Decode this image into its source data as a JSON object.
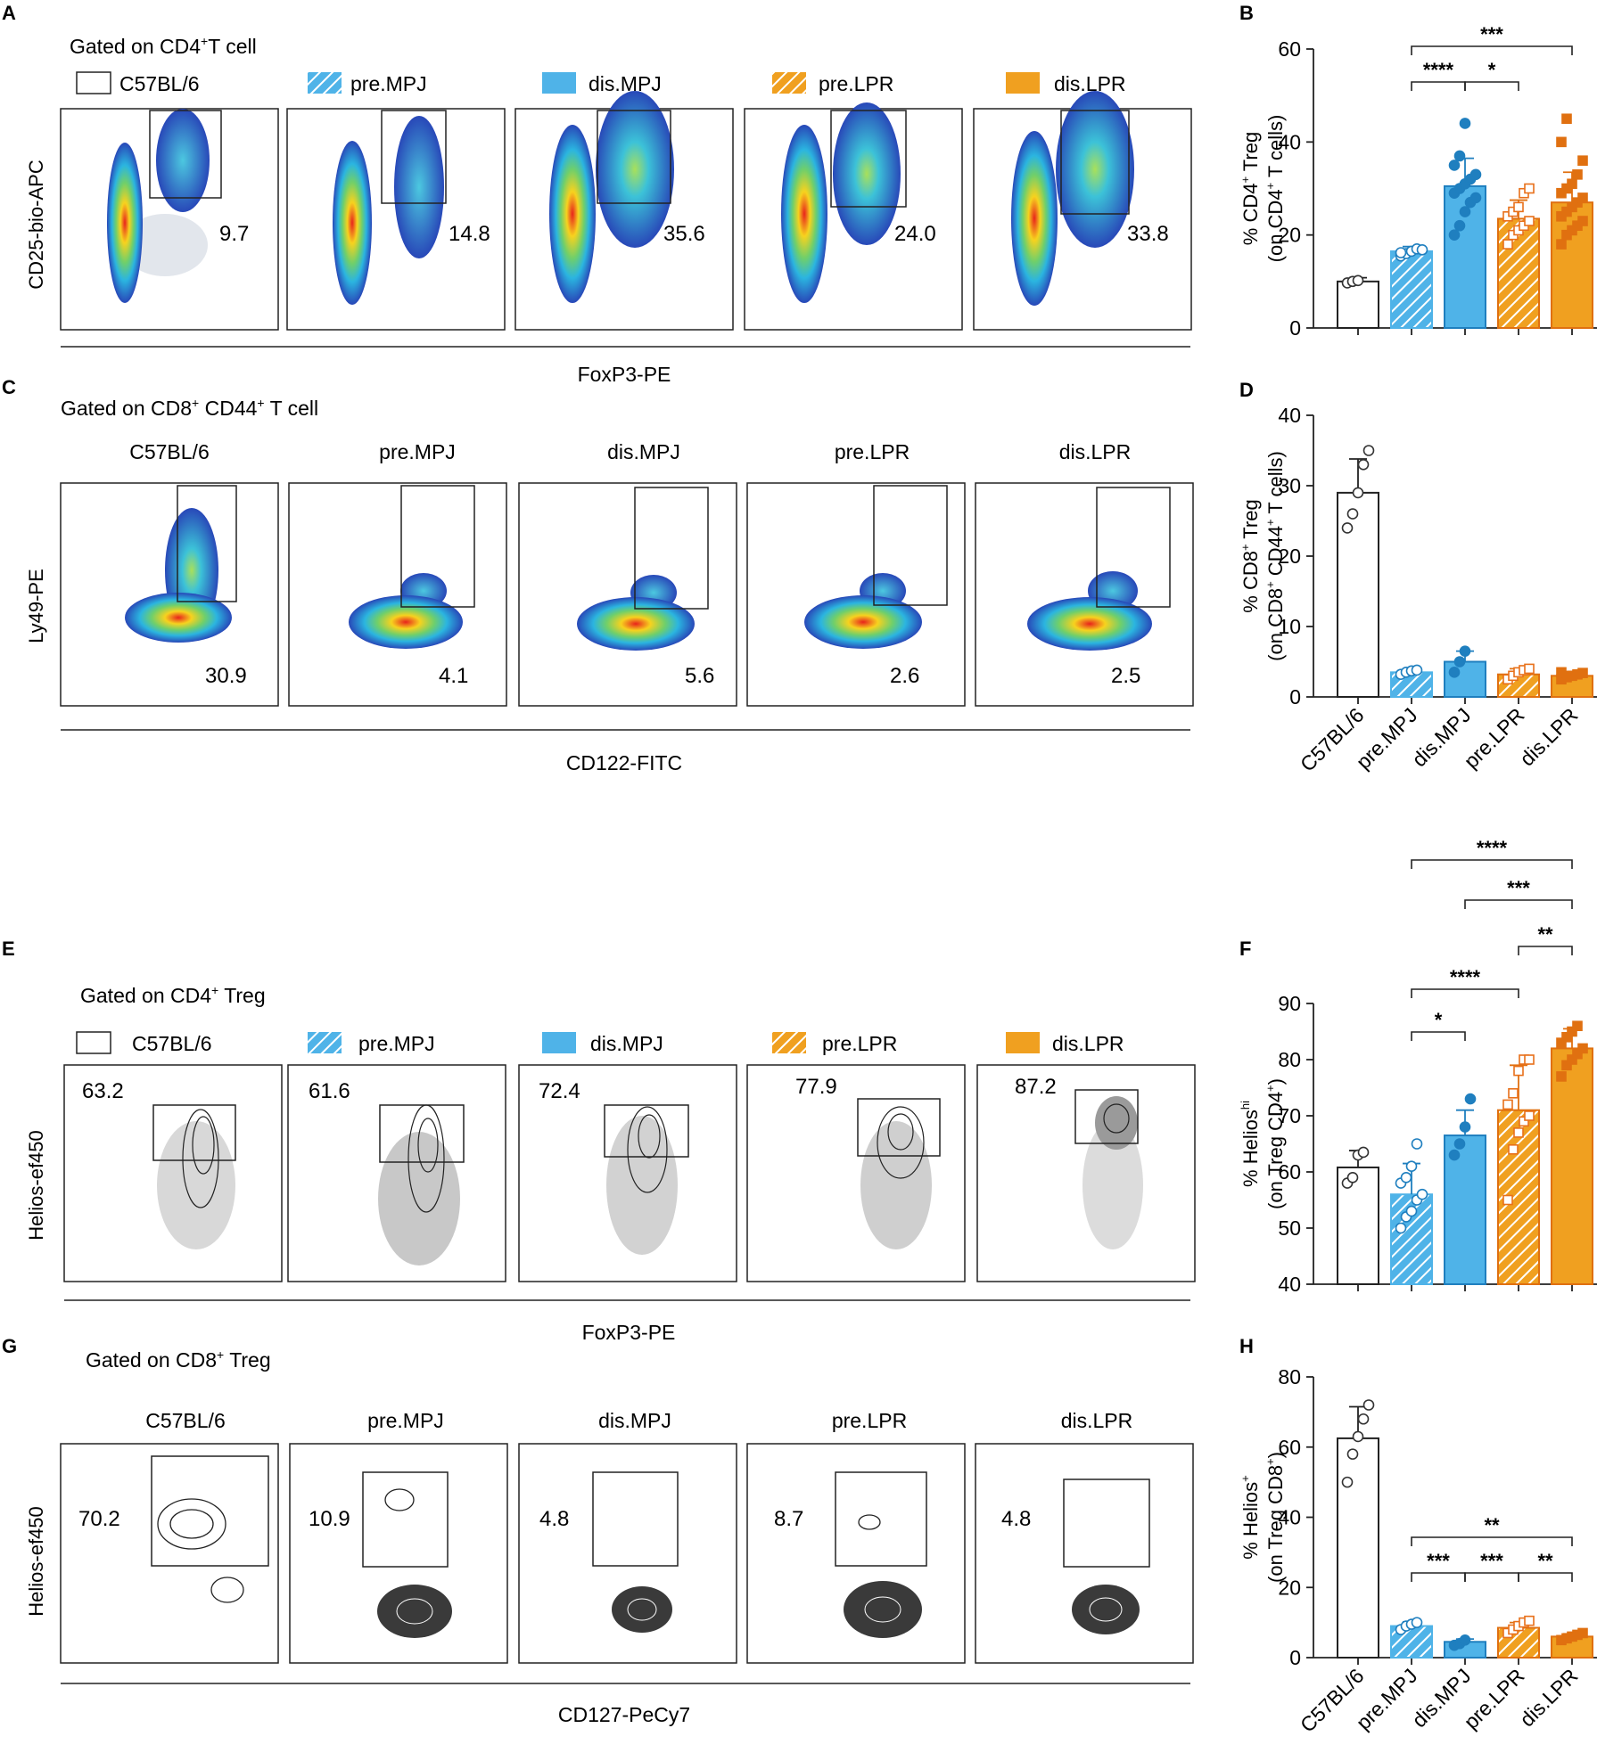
{
  "colors": {
    "c57": "#ffffff",
    "mpj": "#4fb3e8",
    "mpj_dark": "#1f7fbf",
    "lpr": "#f0a020",
    "lpr_dark": "#e07010",
    "point_lpr_open": "#e8701a"
  },
  "groups": [
    "C57BL/6",
    "pre.MPJ",
    "dis.MPJ",
    "pre.LPR",
    "dis.LPR"
  ],
  "panels": {
    "A": {
      "letter": "A",
      "title_prefix": "Gated on CD4",
      "title_sup": "+",
      "title_suffix": "T cell",
      "legend": [
        "C57BL/6",
        "pre.MPJ",
        "dis.MPJ",
        "pre.LPR",
        "dis.LPR"
      ],
      "ylabel": "CD25-bio-APC",
      "xlabel": "FoxP3-PE",
      "gate_values": [
        "9.7",
        "14.8",
        "35.6",
        "24.0",
        "33.8"
      ]
    },
    "C": {
      "letter": "C",
      "title_prefix": "Gated on CD8",
      "title_sup": "+",
      "title_mid": " CD44",
      "title_sup2": "+",
      "title_suffix": " T cell",
      "col_titles": [
        "C57BL/6",
        "pre.MPJ",
        "dis.MPJ",
        "pre.LPR",
        "dis.LPR"
      ],
      "ylabel": "Ly49-PE",
      "xlabel": "CD122-FITC",
      "gate_values": [
        "30.9",
        "4.1",
        "5.6",
        "2.6",
        "2.5"
      ]
    },
    "E": {
      "letter": "E",
      "title_prefix": "Gated on CD4",
      "title_sup": "+",
      "title_suffix": " Treg",
      "legend": [
        "C57BL/6",
        "pre.MPJ",
        "dis.MPJ",
        "pre.LPR",
        "dis.LPR"
      ],
      "ylabel": "Helios-ef450",
      "xlabel": "FoxP3-PE",
      "gate_values": [
        "63.2",
        "61.6",
        "72.4",
        "77.9",
        "87.2"
      ]
    },
    "G": {
      "letter": "G",
      "title_prefix": "Gated on CD8",
      "title_sup": "+",
      "title_suffix": " Treg",
      "col_titles": [
        "C57BL/6",
        "pre.MPJ",
        "dis.MPJ",
        "pre.LPR",
        "dis.LPR"
      ],
      "ylabel": "Helios-ef450",
      "xlabel": "CD127-PeCy7",
      "gate_values": [
        "70.2",
        "10.9",
        "4.8",
        "8.7",
        "4.8"
      ]
    }
  },
  "chart_data": [
    {
      "panel": "B",
      "type": "bar",
      "ylabel_line1": "% CD4",
      "ylabel_line1_sup": "+",
      "ylabel_line1_end": " Treg",
      "ylabel_line2": "(on CD4",
      "ylabel_line2_sup": "+",
      "ylabel_line2_end": " T cells)",
      "ylim": [
        0,
        60
      ],
      "yticks": [
        "0",
        "20",
        "40",
        "60"
      ],
      "ytick_values": [
        0,
        20,
        40,
        60
      ],
      "categories": [
        "C57BL/6",
        "pre.MPJ",
        "dis.MPJ",
        "pre.LPR",
        "dis.LPR"
      ],
      "values": [
        10,
        16.5,
        30.5,
        23.5,
        27
      ],
      "errors": [
        0.8,
        1.0,
        6.0,
        4.0,
        6.5
      ],
      "points": [
        [
          9.7,
          10,
          10.2
        ],
        [
          15.5,
          16,
          16.5,
          17,
          16.8,
          16.2
        ],
        [
          20,
          22,
          25,
          27,
          28,
          29,
          30,
          31,
          32,
          33,
          35,
          37,
          44
        ],
        [
          18,
          20,
          21,
          22,
          23,
          24,
          25,
          26,
          29,
          30
        ],
        [
          18,
          20,
          21,
          22,
          23,
          24,
          25,
          26,
          27,
          28,
          29,
          30,
          31,
          33,
          36,
          40,
          45
        ]
      ],
      "significance": [
        {
          "from": 1,
          "to": 4,
          "label": "***"
        },
        {
          "from": 1,
          "to": 2,
          "label": "****"
        },
        {
          "from": 2,
          "to": 3,
          "label": "*"
        }
      ],
      "show_xlabels": false
    },
    {
      "panel": "D",
      "type": "bar",
      "ylabel_line1": "% CD8",
      "ylabel_line1_sup": "+",
      "ylabel_line1_end": " Treg",
      "ylabel_line2": "(on CD8",
      "ylabel_line2_sup": "+",
      "ylabel_line2_mid": " CD44",
      "ylabel_line2_sup2": "+",
      "ylabel_line2_end": " T cells)",
      "ylim": [
        0,
        40
      ],
      "yticks": [
        "0",
        "10",
        "20",
        "30",
        "40"
      ],
      "ytick_values": [
        0,
        10,
        20,
        30,
        40
      ],
      "categories": [
        "C57BL/6",
        "pre.MPJ",
        "dis.MPJ",
        "pre.LPR",
        "dis.LPR"
      ],
      "values": [
        29,
        3.5,
        5,
        3.2,
        3.0
      ],
      "errors": [
        4.8,
        0.5,
        1.5,
        0.8,
        0.6
      ],
      "points": [
        [
          24,
          26,
          29,
          33,
          35
        ],
        [
          3.2,
          3.5,
          3.7,
          3.8
        ],
        [
          3.5,
          5,
          6.5
        ],
        [
          2.5,
          3,
          3.5,
          3.8,
          4
        ],
        [
          2.5,
          2.8,
          3,
          3.2,
          3.4,
          3.5
        ]
      ],
      "significance": [],
      "show_xlabels": true
    },
    {
      "panel": "F",
      "type": "bar",
      "ylabel_line1": "% Helios",
      "ylabel_line1_sup": "hi",
      "ylabel_line1_end": "",
      "ylabel_line2": "(on Treg CD4",
      "ylabel_line2_sup": "+",
      "ylabel_line2_end": ")",
      "ylim": [
        40,
        90
      ],
      "yticks": [
        "40",
        "50",
        "60",
        "70",
        "80",
        "90"
      ],
      "ytick_values": [
        40,
        50,
        60,
        70,
        80,
        90
      ],
      "categories": [
        "C57BL/6",
        "pre.MPJ",
        "dis.MPJ",
        "pre.LPR",
        "dis.LPR"
      ],
      "values": [
        60.8,
        56,
        66.5,
        71,
        82
      ],
      "errors": [
        3,
        5.5,
        4.5,
        8,
        3.5
      ],
      "points": [
        [
          58,
          59,
          63,
          63.5
        ],
        [
          50,
          52,
          53,
          55,
          56,
          58,
          59,
          61,
          65
        ],
        [
          63,
          65,
          68,
          73
        ],
        [
          55,
          64,
          67,
          69,
          70,
          72,
          74,
          78,
          80,
          80
        ],
        [
          77,
          79,
          80,
          81,
          82,
          83,
          84,
          85,
          86
        ]
      ],
      "significance": [
        {
          "from": 1,
          "to": 4,
          "label": "****"
        },
        {
          "from": 2,
          "to": 4,
          "label": "***"
        },
        {
          "from": 3,
          "to": 4,
          "label": "**"
        },
        {
          "from": 1,
          "to": 3,
          "label": "****"
        },
        {
          "from": 1,
          "to": 2,
          "label": "*"
        }
      ],
      "show_xlabels": false
    },
    {
      "panel": "H",
      "type": "bar",
      "ylabel_line1": "% Helios",
      "ylabel_line1_sup": "+",
      "ylabel_line1_end": "",
      "ylabel_line2": "(on Treg CD8",
      "ylabel_line2_sup": "+",
      "ylabel_line2_end": ")",
      "ylim": [
        0,
        80
      ],
      "yticks": [
        "0",
        "20",
        "40",
        "60",
        "80"
      ],
      "ytick_values": [
        0,
        20,
        40,
        60,
        80
      ],
      "categories": [
        "C57BL/6",
        "pre.MPJ",
        "dis.MPJ",
        "pre.LPR",
        "dis.LPR"
      ],
      "values": [
        62.5,
        9,
        4.5,
        8.5,
        6
      ],
      "errors": [
        9,
        1.2,
        0.8,
        1.5,
        0.8
      ],
      "points": [
        [
          50,
          58,
          63,
          68,
          72
        ],
        [
          8,
          9,
          9.5,
          10
        ],
        [
          3.5,
          4,
          5
        ],
        [
          7,
          8,
          9,
          10,
          10.5
        ],
        [
          5,
          5.5,
          6,
          6.5,
          7
        ]
      ],
      "significance": [
        {
          "from": 1,
          "to": 4,
          "label": "**"
        },
        {
          "from": 1,
          "to": 2,
          "label": "***"
        },
        {
          "from": 2,
          "to": 3,
          "label": "***"
        },
        {
          "from": 3,
          "to": 4,
          "label": "**"
        }
      ],
      "show_xlabels": true
    }
  ]
}
